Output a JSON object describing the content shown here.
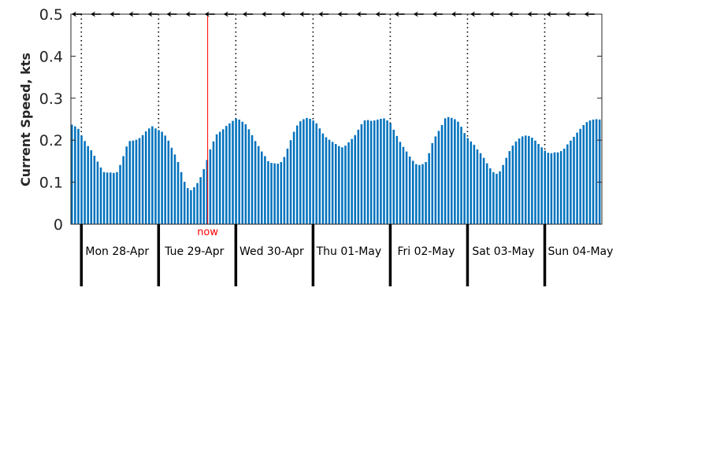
{
  "chart_data": {
    "type": "bar",
    "ylabel": "Current Speed, kts",
    "ylim": [
      0,
      0.5
    ],
    "yticks": [
      "0",
      "0.1",
      "0.2",
      "0.3",
      "0.4",
      "0.5"
    ],
    "bar_color": "#0072bd",
    "now_marker": {
      "label": "now",
      "color": "#ff0000",
      "at_hours": 42.5
    },
    "days": [
      "Mon 28-Apr",
      "Tue 29-Apr",
      "Wed 30-Apr",
      "Thu 01-May",
      "Fri 02-May",
      "Sat 03-May",
      "Sun 04-May"
    ],
    "start_time": "Sun 27-Apr 20:45",
    "interval_hours": 1,
    "values": [
      0.237,
      0.233,
      0.227,
      0.211,
      0.198,
      0.186,
      0.176,
      0.163,
      0.149,
      0.135,
      0.124,
      0.123,
      0.123,
      0.122,
      0.124,
      0.141,
      0.162,
      0.185,
      0.198,
      0.199,
      0.201,
      0.205,
      0.212,
      0.221,
      0.228,
      0.233,
      0.228,
      0.224,
      0.22,
      0.211,
      0.199,
      0.182,
      0.166,
      0.148,
      0.124,
      0.101,
      0.086,
      0.081,
      0.088,
      0.098,
      0.112,
      0.131,
      0.153,
      0.178,
      0.197,
      0.214,
      0.22,
      0.226,
      0.234,
      0.24,
      0.246,
      0.251,
      0.249,
      0.244,
      0.238,
      0.226,
      0.212,
      0.198,
      0.186,
      0.173,
      0.162,
      0.15,
      0.146,
      0.145,
      0.144,
      0.148,
      0.16,
      0.18,
      0.2,
      0.22,
      0.235,
      0.245,
      0.25,
      0.253,
      0.251,
      0.247,
      0.24,
      0.228,
      0.216,
      0.207,
      0.201,
      0.196,
      0.191,
      0.186,
      0.183,
      0.187,
      0.195,
      0.203,
      0.212,
      0.225,
      0.238,
      0.247,
      0.248,
      0.246,
      0.247,
      0.249,
      0.251,
      0.252,
      0.247,
      0.24,
      0.225,
      0.21,
      0.196,
      0.184,
      0.173,
      0.161,
      0.151,
      0.143,
      0.141,
      0.143,
      0.148,
      0.169,
      0.193,
      0.209,
      0.222,
      0.236,
      0.252,
      0.255,
      0.253,
      0.25,
      0.244,
      0.232,
      0.217,
      0.205,
      0.197,
      0.189,
      0.178,
      0.169,
      0.158,
      0.145,
      0.133,
      0.124,
      0.12,
      0.126,
      0.141,
      0.158,
      0.174,
      0.187,
      0.197,
      0.204,
      0.209,
      0.211,
      0.21,
      0.206,
      0.199,
      0.191,
      0.183,
      0.175,
      0.17,
      0.169,
      0.171,
      0.171,
      0.174,
      0.18,
      0.19,
      0.199,
      0.208,
      0.218,
      0.227,
      0.236,
      0.243,
      0.247,
      0.249,
      0.25,
      0.249
    ]
  }
}
